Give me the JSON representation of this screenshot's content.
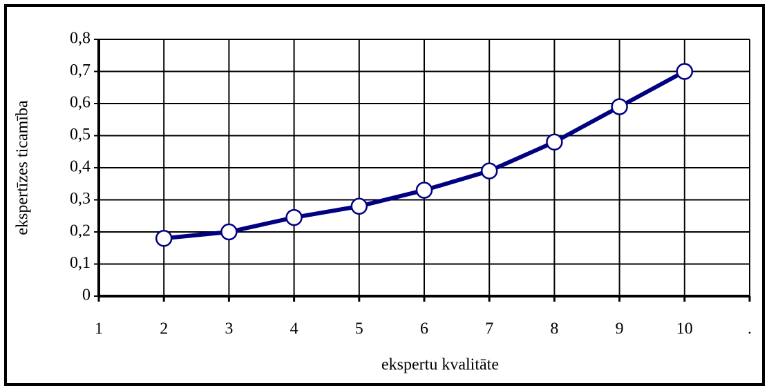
{
  "chart_data": {
    "type": "line",
    "x_label": "ekspertu kvalitāte",
    "y_label": "ekspertīzes ticamība",
    "x": [
      2,
      3,
      4,
      5,
      6,
      7,
      8,
      9,
      10
    ],
    "series": [
      {
        "name": null,
        "color": "#000080",
        "values": [
          0.18,
          0.2,
          0.245,
          0.28,
          0.33,
          0.39,
          0.48,
          0.59,
          0.7
        ]
      }
    ],
    "xlim": [
      1,
      11
    ],
    "xticks": [
      1,
      2,
      3,
      4,
      5,
      6,
      7,
      8,
      9,
      10,
      {
        "value": 11,
        "label": "."
      }
    ],
    "ylim": [
      0,
      0.8
    ],
    "yticks": [
      0,
      {
        "value": 0.1,
        "label": "0,1"
      },
      {
        "value": 0.2,
        "label": "0,2"
      },
      {
        "value": 0.3,
        "label": "0,3"
      },
      {
        "value": 0.4,
        "label": "0,4"
      },
      {
        "value": 0.5,
        "label": "0,5"
      },
      {
        "value": 0.6,
        "label": "0,6"
      },
      {
        "value": 0.7,
        "label": "0,7"
      },
      {
        "value": 0.8,
        "label": "0,8"
      }
    ],
    "grid": true
  }
}
